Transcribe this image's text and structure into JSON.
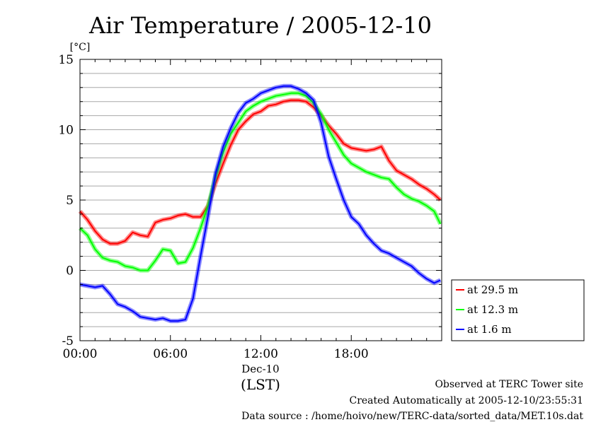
{
  "chart_data": {
    "type": "line",
    "title": "Air Temperature / 2005-12-10",
    "ylabel": "[°C]",
    "xlabel": "(LST)",
    "x_date_label": "Dec-10",
    "ylim": [
      -5,
      15
    ],
    "y_ticks": [
      -5,
      0,
      5,
      10,
      15
    ],
    "y_minor_step": 1,
    "xlim": [
      "00:00",
      "24:00"
    ],
    "x_tick_labels": [
      "00:00",
      "06:00",
      "12:00",
      "18:00"
    ],
    "grid": true,
    "legend_position": "right-bottom",
    "series": [
      {
        "name": "at 29.5 m",
        "color": "#ff0000",
        "x": [
          "00:00",
          "00:30",
          "01:00",
          "01:30",
          "02:00",
          "02:30",
          "03:00",
          "03:30",
          "04:00",
          "04:30",
          "05:00",
          "05:30",
          "06:00",
          "06:30",
          "07:00",
          "07:30",
          "08:00",
          "08:30",
          "09:00",
          "09:30",
          "10:00",
          "10:30",
          "11:00",
          "11:30",
          "12:00",
          "12:30",
          "13:00",
          "13:30",
          "14:00",
          "14:30",
          "15:00",
          "15:30",
          "16:00",
          "16:30",
          "17:00",
          "17:30",
          "18:00",
          "18:30",
          "19:00",
          "19:30",
          "20:00",
          "20:30",
          "21:00",
          "21:30",
          "22:00",
          "22:30",
          "23:00",
          "23:30",
          "23:55"
        ],
        "values": [
          4.2,
          3.6,
          2.8,
          2.2,
          1.9,
          1.9,
          2.1,
          2.7,
          2.5,
          2.4,
          3.4,
          3.6,
          3.7,
          3.9,
          4.0,
          3.8,
          3.8,
          4.6,
          6.2,
          7.6,
          8.9,
          10.0,
          10.6,
          11.1,
          11.3,
          11.7,
          11.8,
          12.0,
          12.1,
          12.1,
          12.0,
          11.6,
          11.0,
          10.3,
          9.7,
          9.0,
          8.7,
          8.6,
          8.5,
          8.6,
          8.8,
          7.8,
          7.1,
          6.8,
          6.5,
          6.1,
          5.8,
          5.4,
          5.0
        ]
      },
      {
        "name": "at 12.3 m",
        "color": "#00ff00",
        "x": [
          "00:00",
          "00:30",
          "01:00",
          "01:30",
          "02:00",
          "02:30",
          "03:00",
          "03:30",
          "04:00",
          "04:30",
          "05:00",
          "05:30",
          "06:00",
          "06:30",
          "07:00",
          "07:30",
          "08:00",
          "08:30",
          "09:00",
          "09:30",
          "10:00",
          "10:30",
          "11:00",
          "11:30",
          "12:00",
          "12:30",
          "13:00",
          "13:30",
          "14:00",
          "14:30",
          "15:00",
          "15:30",
          "16:00",
          "16:30",
          "17:00",
          "17:30",
          "18:00",
          "18:30",
          "19:00",
          "19:30",
          "20:00",
          "20:30",
          "21:00",
          "21:30",
          "22:00",
          "22:30",
          "23:00",
          "23:30",
          "23:55"
        ],
        "values": [
          3.0,
          2.5,
          1.5,
          0.9,
          0.7,
          0.6,
          0.3,
          0.2,
          0.0,
          0.0,
          0.7,
          1.5,
          1.4,
          0.5,
          0.6,
          1.6,
          3.0,
          4.6,
          6.7,
          8.4,
          9.7,
          10.5,
          11.3,
          11.7,
          12.0,
          12.2,
          12.4,
          12.5,
          12.6,
          12.6,
          12.4,
          11.9,
          11.1,
          10.0,
          9.1,
          8.2,
          7.6,
          7.3,
          7.0,
          6.8,
          6.6,
          6.5,
          5.9,
          5.4,
          5.1,
          4.9,
          4.6,
          4.2,
          3.3
        ]
      },
      {
        "name": "at 1.6 m",
        "color": "#0000ff",
        "x": [
          "00:00",
          "00:30",
          "01:00",
          "01:30",
          "02:00",
          "02:30",
          "03:00",
          "03:30",
          "04:00",
          "04:30",
          "05:00",
          "05:30",
          "06:00",
          "06:30",
          "07:00",
          "07:30",
          "08:00",
          "08:30",
          "09:00",
          "09:30",
          "10:00",
          "10:30",
          "11:00",
          "11:30",
          "12:00",
          "12:30",
          "13:00",
          "13:30",
          "14:00",
          "14:30",
          "15:00",
          "15:30",
          "16:00",
          "16:30",
          "17:00",
          "17:30",
          "18:00",
          "18:30",
          "19:00",
          "19:30",
          "20:00",
          "20:30",
          "21:00",
          "21:30",
          "22:00",
          "22:30",
          "23:00",
          "23:30",
          "23:55"
        ],
        "values": [
          -1.0,
          -1.1,
          -1.2,
          -1.1,
          -1.7,
          -2.4,
          -2.6,
          -2.9,
          -3.3,
          -3.4,
          -3.5,
          -3.4,
          -3.6,
          -3.6,
          -3.5,
          -2.0,
          1.0,
          3.9,
          6.9,
          8.8,
          10.1,
          11.2,
          11.9,
          12.2,
          12.6,
          12.8,
          13.0,
          13.1,
          13.1,
          12.9,
          12.6,
          12.1,
          10.5,
          8.1,
          6.5,
          5.0,
          3.8,
          3.3,
          2.5,
          1.9,
          1.4,
          1.2,
          0.9,
          0.6,
          0.3,
          -0.2,
          -0.6,
          -0.9,
          -0.7
        ]
      }
    ]
  },
  "footer": {
    "site": "Observed at TERC Tower site",
    "created": "Created Automatically at 2005-12-10/23:55:31",
    "source": "Data source : /home/hoivo/new/TERC-data/sorted_data/MET.10s.dat"
  }
}
